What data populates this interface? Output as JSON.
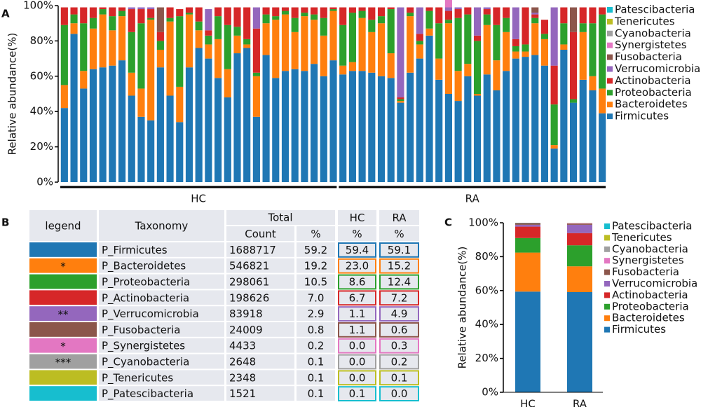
{
  "panel_labels": [
    "A",
    "B",
    "C"
  ],
  "chart_data": [
    {
      "type": "stacked-bar",
      "y_label": "Relative abundance(%)",
      "ylim": [
        0,
        100
      ],
      "yticks": [
        {
          "value": 0,
          "label": "0%"
        },
        {
          "value": 20,
          "label": "20%"
        },
        {
          "value": 40,
          "label": "40%"
        },
        {
          "value": 60,
          "label": "60%"
        },
        {
          "value": 80,
          "label": "80%"
        },
        {
          "value": 100,
          "label": "100%"
        }
      ],
      "series": [
        {
          "name": "Firmicutes",
          "color": "#1f77b4"
        },
        {
          "name": "Bacteroidetes",
          "color": "#ff7f0e"
        },
        {
          "name": "Proteobacteria",
          "color": "#2ca02c"
        },
        {
          "name": "Actinobacteria",
          "color": "#d62728"
        },
        {
          "name": "Verrucomicrobia",
          "color": "#9467bd"
        },
        {
          "name": "Fusobacteria",
          "color": "#8c564b"
        },
        {
          "name": "Synergistetes",
          "color": "#e377c2"
        },
        {
          "name": "Cyanobacteria",
          "color": "#a0a0a0"
        },
        {
          "name": "Tenericutes",
          "color": "#bcbd22"
        },
        {
          "name": "Patescibacteria",
          "color": "#17becf"
        }
      ],
      "groups": [
        {
          "label": "HC",
          "series_values": [
            [
              42,
              84,
              53,
              64,
              65,
              66,
              69,
              49,
              37,
              35,
              65,
              49,
              34,
              65,
              76,
              70,
              59,
              48,
              73,
              76,
              37,
              72,
              59,
              63,
              64,
              63,
              67,
              60,
              69
            ],
            [
              13,
              6,
              10,
              23,
              30,
              20,
              25,
              13,
              16,
              57,
              10,
              42,
              20,
              30,
              10,
              8,
              22,
              16,
              10,
              2,
              23,
              18,
              33,
              32,
              21,
              31,
              25,
              23,
              28
            ],
            [
              34,
              5,
              27,
              6,
              3,
              8,
              3,
              23,
              37,
              1,
              5,
              2,
              40,
              1,
              5,
              5,
              13,
              25,
              5,
              3,
              2,
              5,
              2,
              2,
              8,
              2,
              3,
              10,
              1
            ],
            [
              10,
              4,
              9,
              6,
              1,
              5,
              2,
              13,
              8,
              5,
              5,
              6,
              4,
              3,
              8,
              3,
              5,
              10,
              11,
              18,
              25,
              4,
              5,
              2,
              6,
              3,
              4,
              6,
              1
            ],
            [
              0,
              0,
              0,
              0,
              0,
              0,
              0,
              1,
              1,
              1,
              0,
              0,
              0,
              0,
              0,
              12,
              0,
              0,
              0,
              0,
              12,
              0,
              0,
              0,
              0,
              0,
              0,
              0,
              0
            ],
            [
              0,
              0,
              0,
              0,
              0,
              0,
              0,
              0,
              0,
              0,
              14,
              0,
              0,
              0,
              0,
              0,
              0,
              0,
              0,
              0,
              0,
              0,
              0,
              0,
              0,
              0,
              0,
              0,
              0
            ],
            [
              0,
              0,
              0,
              0,
              0,
              0,
              0,
              0,
              0,
              0,
              0,
              0,
              0,
              0,
              0,
              0,
              0,
              0,
              0,
              0,
              0,
              0,
              0,
              0,
              0,
              0,
              0,
              0,
              0
            ],
            [
              0,
              0,
              0,
              0,
              0,
              0,
              0,
              0,
              0,
              0,
              0,
              0,
              0,
              0,
              0,
              0,
              0,
              0,
              0,
              0,
              0,
              0,
              0,
              0,
              0,
              0,
              0,
              0,
              0
            ],
            [
              0,
              0,
              0,
              0,
              0,
              0,
              0,
              0,
              0,
              0,
              0,
              0,
              0,
              0,
              0,
              0,
              0,
              0,
              0,
              0,
              0,
              0,
              0,
              0,
              0,
              0,
              0,
              0,
              0
            ],
            [
              0,
              0,
              0,
              0,
              0,
              0,
              0,
              0,
              0,
              0,
              0,
              0,
              0,
              0,
              0,
              0,
              0,
              0,
              0,
              0,
              0,
              0,
              0,
              0,
              0,
              0,
              0,
              0,
              0
            ]
          ]
        },
        {
          "label": "RA",
          "series_values": [
            [
              61,
              63,
              63,
              62,
              60,
              59,
              45,
              62,
              70,
              83,
              58,
              50,
              46,
              60,
              49,
              61,
              52,
              63,
              70,
              71,
              72,
              66,
              19,
              75,
              45,
              58,
              52,
              39
            ],
            [
              5,
              5,
              30,
              23,
              30,
              14,
              1,
              32,
              8,
              4,
              12,
              40,
              17,
              7,
              1,
              28,
              17,
              22,
              4,
              3,
              18,
              15,
              2,
              3,
              0,
              27,
              8,
              14
            ],
            [
              23,
              28,
              4,
              7,
              4,
              25,
              1,
              2,
              2,
              10,
              20,
              2,
              30,
              28,
              30,
              6,
              20,
              8,
              3,
              4,
              3,
              3,
              23,
              12,
              2,
              5,
              30,
              42
            ],
            [
              10,
              3,
              2,
              7,
              5,
              1,
              1,
              3,
              4,
              2,
              9,
              5,
              5,
              4,
              3,
              3,
              10,
              6,
              4,
              21,
              2,
              8,
              22,
              9,
              38,
              9,
              9,
              4
            ],
            [
              0,
              0,
              0,
              0,
              0,
              0,
              51,
              0,
              15,
              0,
              0,
              2,
              1,
              0,
              16,
              1,
              0,
              0,
              18,
              0,
              1,
              0,
              33,
              0,
              0,
              0,
              0,
              0
            ],
            [
              0,
              0,
              0,
              0,
              0,
              0,
              0,
              0,
              0,
              0,
              0,
              0,
              0,
              0,
              0,
              0,
              0,
              0,
              0,
              0,
              3,
              0,
              0,
              0,
              14,
              0,
              0,
              0
            ],
            [
              0,
              0,
              0,
              0,
              0,
              0,
              0,
              0,
              0,
              0,
              0,
              7,
              0,
              0,
              0,
              0,
              0,
              0,
              0,
              0,
              0,
              0,
              0,
              0,
              0,
              0,
              0,
              0
            ],
            [
              0,
              0,
              0,
              0,
              0,
              0,
              0,
              0,
              0,
              0,
              0,
              0,
              0,
              0,
              0,
              0,
              0,
              0,
              0,
              0,
              0,
              0,
              0,
              0,
              0,
              0,
              0,
              0
            ],
            [
              0,
              0,
              0,
              0,
              0,
              0,
              0,
              0,
              0,
              0,
              0,
              0,
              0,
              0,
              0,
              0,
              0,
              0,
              0,
              0,
              0,
              0,
              0,
              0,
              0,
              0,
              0,
              0
            ],
            [
              0,
              0,
              0,
              0,
              0,
              0,
              0,
              0,
              0,
              0,
              0,
              0,
              0,
              0,
              0,
              0,
              0,
              0,
              0,
              0,
              0,
              0,
              0,
              0,
              0,
              0,
              0,
              0
            ]
          ]
        }
      ]
    },
    {
      "type": "stacked-bar",
      "y_label": "Relative abundance(%)",
      "categories": [
        "HC",
        "RA"
      ],
      "ylim": [
        0,
        100
      ],
      "yticks": [
        {
          "value": 0,
          "label": "0%"
        },
        {
          "value": 20,
          "label": "20%"
        },
        {
          "value": 40,
          "label": "40%"
        },
        {
          "value": 60,
          "label": "60%"
        },
        {
          "value": 80,
          "label": "80%"
        },
        {
          "value": 100,
          "label": "100%"
        }
      ],
      "series": [
        {
          "name": "Firmicutes",
          "color": "#1f77b4",
          "values": [
            59.4,
            59.1
          ]
        },
        {
          "name": "Bacteroidetes",
          "color": "#ff7f0e",
          "values": [
            23.0,
            15.2
          ]
        },
        {
          "name": "Proteobacteria",
          "color": "#2ca02c",
          "values": [
            8.6,
            12.4
          ]
        },
        {
          "name": "Actinobacteria",
          "color": "#d62728",
          "values": [
            6.7,
            7.2
          ]
        },
        {
          "name": "Verrucomicrobia",
          "color": "#9467bd",
          "values": [
            1.1,
            4.9
          ]
        },
        {
          "name": "Fusobacteria",
          "color": "#8c564b",
          "values": [
            1.1,
            0.6
          ]
        },
        {
          "name": "Synergistetes",
          "color": "#e377c2",
          "values": [
            0.0,
            0.3
          ]
        },
        {
          "name": "Cyanobacteria",
          "color": "#a0a0a0",
          "values": [
            0.0,
            0.2
          ]
        },
        {
          "name": "Tenericutes",
          "color": "#bcbd22",
          "values": [
            0.0,
            0.1
          ]
        },
        {
          "name": "Patescibacteria",
          "color": "#17becf",
          "values": [
            0.1,
            0.0
          ]
        }
      ]
    }
  ],
  "table": {
    "header": {
      "legend": "legend",
      "taxonomy": "Taxonomy",
      "total": "Total",
      "hc": "HC",
      "ra": "RA",
      "count": "Count",
      "pct": "%"
    },
    "rows": [
      {
        "color": "#1f77b4",
        "taxonomy": "P_Firmicutes",
        "count": "1688717",
        "total_pct": "59.2",
        "hc_pct": "59.4",
        "ra_pct": "59.1"
      },
      {
        "color": "#ff7f0e",
        "stars": "*",
        "taxonomy": "P_Bacteroidetes",
        "count": "546821",
        "total_pct": "19.2",
        "hc_pct": "23.0",
        "ra_pct": "15.2"
      },
      {
        "color": "#2ca02c",
        "taxonomy": "P_Proteobacteria",
        "count": "298061",
        "total_pct": "10.5",
        "hc_pct": "8.6",
        "ra_pct": "12.4"
      },
      {
        "color": "#d62728",
        "taxonomy": "P_Actinobacteria",
        "count": "198626",
        "total_pct": "7.0",
        "hc_pct": "6.7",
        "ra_pct": "7.2"
      },
      {
        "color": "#9467bd",
        "stars": "**",
        "taxonomy": "P_Verrucomicrobia",
        "count": "83918",
        "total_pct": "2.9",
        "hc_pct": "1.1",
        "ra_pct": "4.9"
      },
      {
        "color": "#8c564b",
        "taxonomy": "P_Fusobacteria",
        "count": "24009",
        "total_pct": "0.8",
        "hc_pct": "1.1",
        "ra_pct": "0.6"
      },
      {
        "color": "#e377c2",
        "stars": "*",
        "taxonomy": "P_Synergistetes",
        "count": "4433",
        "total_pct": "0.2",
        "hc_pct": "0.0",
        "ra_pct": "0.3"
      },
      {
        "color": "#a0a0a0",
        "stars": "***",
        "taxonomy": "P_Cyanobacteria",
        "count": "2648",
        "total_pct": "0.1",
        "hc_pct": "0.0",
        "ra_pct": "0.2"
      },
      {
        "color": "#bcbd22",
        "taxonomy": "P_Tenericutes",
        "count": "2348",
        "total_pct": "0.1",
        "hc_pct": "0.0",
        "ra_pct": "0.1"
      },
      {
        "color": "#17becf",
        "taxonomy": "P_Patescibacteria",
        "count": "1521",
        "total_pct": "0.1",
        "hc_pct": "0.1",
        "ra_pct": "0.0"
      }
    ]
  }
}
